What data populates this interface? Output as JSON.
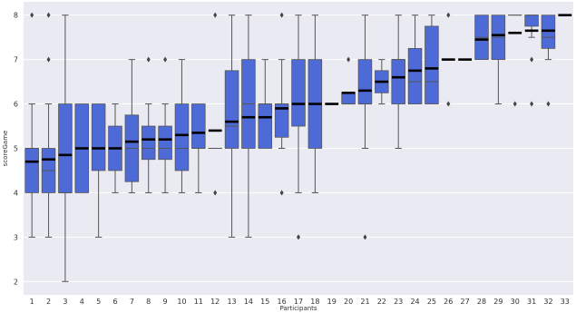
{
  "chart_data": {
    "type": "box",
    "xlabel": "Participants",
    "ylabel": "scoreGame",
    "ylim": [
      1.7,
      8.3
    ],
    "yticks": [
      2,
      3,
      4,
      5,
      6,
      7,
      8
    ],
    "grid": true,
    "colors": {
      "background": "#eaeaf2",
      "grid": "#ffffff",
      "box": "#4d6ad6",
      "edge": "#555555",
      "mean": "#000000"
    },
    "categories": [
      "1",
      "2",
      "3",
      "4",
      "5",
      "6",
      "7",
      "8",
      "9",
      "10",
      "11",
      "12",
      "13",
      "14",
      "15",
      "16",
      "17",
      "18",
      "19",
      "20",
      "21",
      "22",
      "23",
      "24",
      "25",
      "26",
      "27",
      "28",
      "29",
      "30",
      "31",
      "32",
      "33"
    ],
    "boxes": [
      {
        "q1": 4,
        "median": 5,
        "q3": 5,
        "whislo": 3,
        "whishi": 6,
        "mean": 4.7,
        "fliers": [
          8
        ]
      },
      {
        "q1": 4,
        "median": 4.5,
        "q3": 5,
        "whislo": 3,
        "whishi": 6,
        "mean": 4.75,
        "fliers": [
          7,
          8
        ]
      },
      {
        "q1": 4,
        "median": 4,
        "q3": 6,
        "whislo": 2,
        "whishi": 8,
        "mean": 4.85,
        "fliers": []
      },
      {
        "q1": 4,
        "median": 5,
        "q3": 6,
        "whislo": 4,
        "whishi": 6,
        "mean": 5.0,
        "fliers": []
      },
      {
        "q1": 4.5,
        "median": 5,
        "q3": 6,
        "whislo": 3,
        "whishi": 6,
        "mean": 5.0,
        "fliers": []
      },
      {
        "q1": 4.5,
        "median": 5,
        "q3": 5.5,
        "whislo": 4,
        "whishi": 6,
        "mean": 5.0,
        "fliers": []
      },
      {
        "q1": 4.25,
        "median": 5,
        "q3": 5.75,
        "whislo": 4,
        "whishi": 7,
        "mean": 5.15,
        "fliers": []
      },
      {
        "q1": 4.75,
        "median": 5,
        "q3": 5.5,
        "whislo": 4,
        "whishi": 6,
        "mean": 5.2,
        "fliers": [
          7
        ]
      },
      {
        "q1": 4.75,
        "median": 5,
        "q3": 5.5,
        "whislo": 4,
        "whishi": 6,
        "mean": 5.2,
        "fliers": [
          7
        ]
      },
      {
        "q1": 4.5,
        "median": 5,
        "q3": 6,
        "whislo": 4,
        "whishi": 7,
        "mean": 5.3,
        "fliers": []
      },
      {
        "q1": 5,
        "median": 5,
        "q3": 6,
        "whislo": 4,
        "whishi": 6,
        "mean": 5.35,
        "fliers": []
      },
      {
        "q1": 5,
        "median": 5,
        "q3": 5,
        "whislo": 5,
        "whishi": 5,
        "mean": 5.4,
        "fliers": [
          4,
          8
        ]
      },
      {
        "q1": 5,
        "median": 5.5,
        "q3": 6.75,
        "whislo": 3,
        "whishi": 8,
        "mean": 5.6,
        "fliers": []
      },
      {
        "q1": 5,
        "median": 6,
        "q3": 7,
        "whislo": 3,
        "whishi": 8,
        "mean": 5.7,
        "fliers": []
      },
      {
        "q1": 5,
        "median": 6,
        "q3": 6,
        "whislo": 5,
        "whishi": 7,
        "mean": 5.7,
        "fliers": []
      },
      {
        "q1": 5.25,
        "median": 6,
        "q3": 6,
        "whislo": 5,
        "whishi": 7,
        "mean": 5.9,
        "fliers": [
          4,
          8
        ]
      },
      {
        "q1": 5.5,
        "median": 6,
        "q3": 7,
        "whislo": 4,
        "whishi": 8,
        "mean": 6.0,
        "fliers": [
          3
        ]
      },
      {
        "q1": 5,
        "median": 6,
        "q3": 7,
        "whislo": 4,
        "whishi": 8,
        "mean": 6.0,
        "fliers": []
      },
      {
        "q1": 6,
        "median": 6,
        "q3": 6,
        "whislo": 6,
        "whishi": 6,
        "mean": 6.0,
        "fliers": []
      },
      {
        "q1": 6,
        "median": 6,
        "q3": 6.25,
        "whislo": 6,
        "whishi": 6.25,
        "mean": 6.25,
        "fliers": [
          7
        ]
      },
      {
        "q1": 6,
        "median": 6,
        "q3": 7,
        "whislo": 5,
        "whishi": 8,
        "mean": 6.3,
        "fliers": [
          3
        ]
      },
      {
        "q1": 6.25,
        "median": 6.5,
        "q3": 6.75,
        "whislo": 6,
        "whishi": 7,
        "mean": 6.5,
        "fliers": []
      },
      {
        "q1": 6,
        "median": 7,
        "q3": 7,
        "whislo": 5,
        "whishi": 8,
        "mean": 6.6,
        "fliers": []
      },
      {
        "q1": 6,
        "median": 6.5,
        "q3": 7.25,
        "whislo": 6,
        "whishi": 8,
        "mean": 6.75,
        "fliers": []
      },
      {
        "q1": 6,
        "median": 6.5,
        "q3": 7.75,
        "whislo": 6,
        "whishi": 8,
        "mean": 6.8,
        "fliers": []
      },
      {
        "q1": 7,
        "median": 7,
        "q3": 7,
        "whislo": 7,
        "whishi": 7,
        "mean": 7.0,
        "fliers": [
          6,
          8
        ]
      },
      {
        "q1": 7,
        "median": 7,
        "q3": 7,
        "whislo": 7,
        "whishi": 7,
        "mean": 7.0,
        "fliers": []
      },
      {
        "q1": 7,
        "median": 7.5,
        "q3": 8,
        "whislo": 7,
        "whishi": 8,
        "mean": 7.45,
        "fliers": []
      },
      {
        "q1": 7,
        "median": 7.5,
        "q3": 8,
        "whislo": 6,
        "whishi": 8,
        "mean": 7.55,
        "fliers": []
      },
      {
        "q1": 8,
        "median": 8,
        "q3": 8,
        "whislo": 8,
        "whishi": 8,
        "mean": 7.6,
        "fliers": [
          6
        ]
      },
      {
        "q1": 7.75,
        "median": 8,
        "q3": 8,
        "whislo": 7.5,
        "whishi": 8,
        "mean": 7.65,
        "fliers": [
          6,
          7
        ]
      },
      {
        "q1": 7.25,
        "median": 7.5,
        "q3": 8,
        "whislo": 7,
        "whishi": 8,
        "mean": 7.65,
        "fliers": [
          6
        ]
      },
      {
        "q1": 8,
        "median": 8,
        "q3": 8,
        "whislo": 8,
        "whishi": 8,
        "mean": 8.0,
        "fliers": []
      }
    ]
  }
}
